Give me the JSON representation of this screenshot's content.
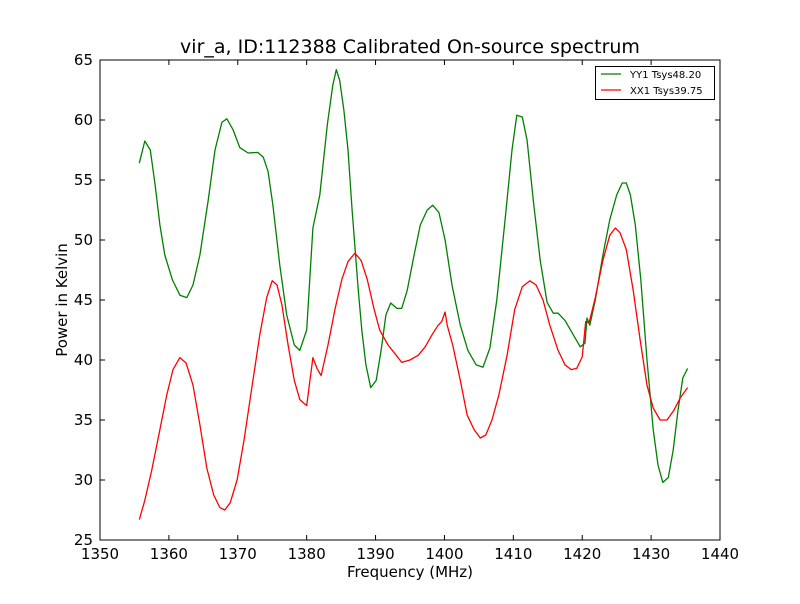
{
  "chart_data": {
    "type": "line",
    "title": "vir_a, ID:112388 Calibrated On-source spectrum",
    "xlabel": "Frequency (MHz)",
    "ylabel": "Power in Kelvin",
    "xlim": [
      1350,
      1440
    ],
    "ylim": [
      25,
      65
    ],
    "xticks": [
      1350,
      1360,
      1370,
      1380,
      1390,
      1400,
      1410,
      1420,
      1430,
      1440
    ],
    "yticks": [
      25,
      30,
      35,
      40,
      45,
      50,
      55,
      60,
      65
    ],
    "grid": false,
    "legend_position": "top-right",
    "series": [
      {
        "name": "YY1 Tsys48.20",
        "color": "#008000",
        "x": [
          1355.7,
          1356.5,
          1357.3,
          1358,
          1358.7,
          1359.4,
          1360.5,
          1361.6,
          1362.6,
          1363.5,
          1364.5,
          1365.7,
          1366.7,
          1367.7,
          1368.4,
          1369.3,
          1370.3,
          1371.5,
          1372.9,
          1373.7,
          1374.4,
          1375.1,
          1376.1,
          1377.1,
          1378.2,
          1379,
          1380,
          1380.9,
          1381.9,
          1383,
          1383.8,
          1384.3,
          1384.8,
          1385.4,
          1386,
          1386.6,
          1387.5,
          1388,
          1388.6,
          1389.3,
          1390.1,
          1390.8,
          1391.5,
          1392.2,
          1393.1,
          1393.8,
          1394.6,
          1395.6,
          1396.5,
          1397.5,
          1398.3,
          1399.2,
          1400.1,
          1401.1,
          1402.3,
          1403.4,
          1404.6,
          1405.6,
          1406.6,
          1407.6,
          1408.8,
          1409.8,
          1410.5,
          1411.3,
          1412,
          1412.9,
          1413.9,
          1414.9,
          1415.8,
          1416.5,
          1417.5,
          1418.7,
          1419.7,
          1420.4,
          1420.7,
          1421.1,
          1421.9,
          1423,
          1424,
          1425,
          1425.8,
          1426.4,
          1427,
          1427.7,
          1428.5,
          1429.4,
          1430.3,
          1431,
          1431.7,
          1432.5,
          1433.2,
          1433.9,
          1434.6,
          1435.3
        ],
        "y": [
          56.4,
          58.25,
          57.5,
          54.6,
          51.25,
          48.75,
          46.7,
          45.4,
          45.2,
          46.25,
          48.75,
          53.3,
          57.5,
          59.8,
          60.1,
          59.2,
          57.7,
          57.25,
          57.3,
          56.9,
          55.7,
          52.9,
          47.9,
          43.75,
          41.25,
          40.8,
          42.5,
          51,
          53.75,
          59.6,
          62.9,
          64.2,
          63.3,
          60.8,
          57.5,
          52.5,
          45.8,
          42.5,
          39.6,
          37.7,
          38.3,
          40.8,
          43.75,
          44.75,
          44.3,
          44.3,
          45.8,
          48.75,
          51.25,
          52.5,
          52.9,
          52.3,
          50,
          46.25,
          42.9,
          40.8,
          39.6,
          39.4,
          41,
          45,
          51.7,
          57.5,
          60.4,
          60.25,
          58.3,
          53.3,
          48.3,
          44.8,
          43.9,
          43.9,
          43.3,
          42.1,
          41.1,
          41.4,
          43.5,
          42.9,
          45,
          48.75,
          51.7,
          53.75,
          54.75,
          54.75,
          53.75,
          51.25,
          46.7,
          40,
          34.2,
          31.25,
          29.8,
          30.2,
          32.5,
          35.8,
          38.5,
          39.3
        ]
      },
      {
        "name": "XX1 Tsys39.75",
        "color": "#ff0000",
        "x": [
          1355.7,
          1356.5,
          1357.5,
          1358.7,
          1359.7,
          1360.6,
          1361.6,
          1362.5,
          1363.5,
          1364.5,
          1365.5,
          1366.5,
          1367.4,
          1368.1,
          1368.9,
          1369.9,
          1370.9,
          1372.1,
          1373.2,
          1374.2,
          1375,
          1375.7,
          1376.4,
          1377.3,
          1378.2,
          1379,
          1380,
          1380.9,
          1381.5,
          1382.1,
          1383.1,
          1384.1,
          1385.1,
          1386,
          1387,
          1387.9,
          1388.8,
          1389.8,
          1390.6,
          1391.8,
          1393,
          1393.8,
          1395,
          1396.2,
          1397.2,
          1398.2,
          1399.1,
          1399.6,
          1400.1,
          1400.4,
          1401.2,
          1402.3,
          1403.3,
          1404.3,
          1405.2,
          1406,
          1406.9,
          1407.9,
          1409.1,
          1410.2,
          1411.3,
          1412.4,
          1413.3,
          1414.3,
          1415.3,
          1416.5,
          1417.5,
          1418.4,
          1419.2,
          1420,
          1420.5,
          1421,
          1421.9,
          1423,
          1424,
          1424.8,
          1425.5,
          1426.4,
          1427.4,
          1428.4,
          1429.4,
          1430.3,
          1431.3,
          1432.3,
          1433.3,
          1434.3,
          1435.3
        ],
        "y": [
          26.7,
          28.3,
          30.8,
          34.2,
          37.1,
          39.2,
          40.2,
          39.75,
          37.9,
          34.6,
          31,
          28.75,
          27.7,
          27.5,
          28.1,
          30,
          33.3,
          37.9,
          42.1,
          45.2,
          46.6,
          46.25,
          44.6,
          41.25,
          38.3,
          36.7,
          36.2,
          40.2,
          39.3,
          38.7,
          41.25,
          44.2,
          46.7,
          48.2,
          48.9,
          48.3,
          46.7,
          44.2,
          42.5,
          41.25,
          40.4,
          39.8,
          40,
          40.4,
          41.1,
          42.1,
          42.9,
          43.2,
          44,
          42.9,
          41.25,
          38.3,
          35.4,
          34.2,
          33.5,
          33.75,
          35,
          37.1,
          40.4,
          44.2,
          46.1,
          46.6,
          46.25,
          45,
          42.9,
          40.8,
          39.6,
          39.2,
          39.3,
          40.25,
          43.2,
          43.1,
          45.2,
          48.3,
          50.4,
          51,
          50.6,
          49.2,
          45.8,
          41.7,
          37.9,
          36,
          35,
          35,
          35.8,
          36.9,
          37.7
        ]
      }
    ]
  }
}
